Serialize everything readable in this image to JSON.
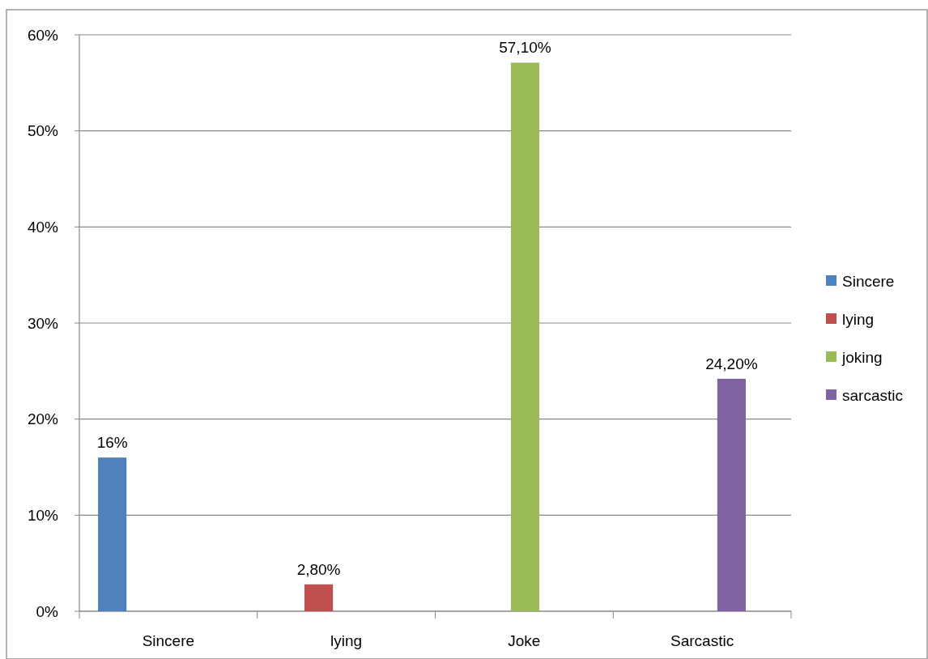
{
  "chart_data": {
    "type": "bar",
    "categories": [
      "Sincere",
      "lying",
      "Joke",
      "Sarcastic"
    ],
    "series": [
      {
        "name": "Sincere",
        "color": "#4f81bd",
        "values": [
          16,
          null,
          null,
          null
        ],
        "value_labels": [
          "16%",
          null,
          null,
          null
        ]
      },
      {
        "name": "lying",
        "color": "#c0504d",
        "values": [
          null,
          2.8,
          null,
          null
        ],
        "value_labels": [
          null,
          "2,80%",
          null,
          null
        ]
      },
      {
        "name": "joking",
        "color": "#9bbb59",
        "values": [
          null,
          null,
          57.1,
          null
        ],
        "value_labels": [
          null,
          null,
          "57,10%",
          null
        ]
      },
      {
        "name": "sarcastic",
        "color": "#8064a2",
        "values": [
          null,
          null,
          null,
          24.2
        ],
        "value_labels": [
          null,
          null,
          null,
          "24,20%"
        ]
      }
    ],
    "ylim": [
      0,
      60
    ],
    "yticks": [
      {
        "value": 0,
        "label": "0%"
      },
      {
        "value": 10,
        "label": "10%"
      },
      {
        "value": 20,
        "label": "20%"
      },
      {
        "value": 30,
        "label": "30%"
      },
      {
        "value": 40,
        "label": "40%"
      },
      {
        "value": 50,
        "label": "50%"
      },
      {
        "value": 60,
        "label": "60%"
      }
    ],
    "grid": "y",
    "legend": "right"
  }
}
